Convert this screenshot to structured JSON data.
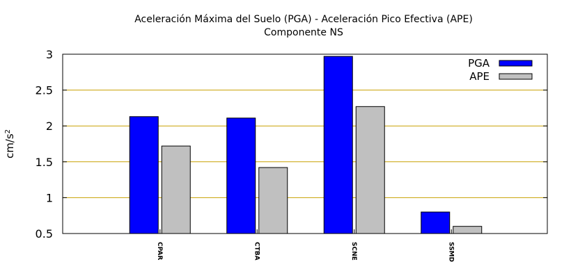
{
  "chart_data": {
    "type": "bar",
    "title": "Aceleración Máxima del Suelo (PGA) -  Aceleración Pico Efectiva (APE)",
    "subtitle": "Componente NS",
    "ylabel_base": "cm/s",
    "ylabel_exp": "2",
    "xlabel": "",
    "ylim": [
      0.5,
      3
    ],
    "yticks": [
      "0.5",
      "1",
      "1.5",
      "2",
      "2.5",
      "3"
    ],
    "grid": "horizontal",
    "legend_position": "top-right",
    "categories": [
      "CPAR",
      "CTBA",
      "SCNE",
      "SSMD"
    ],
    "series": [
      {
        "name": "PGA",
        "color": "#0000ff",
        "values": [
          2.13,
          2.11,
          2.97,
          0.8
        ]
      },
      {
        "name": "APE",
        "color": "#c0c0c0",
        "values": [
          1.72,
          1.42,
          2.27,
          0.6
        ]
      }
    ],
    "grid_color": "#c8a000"
  }
}
